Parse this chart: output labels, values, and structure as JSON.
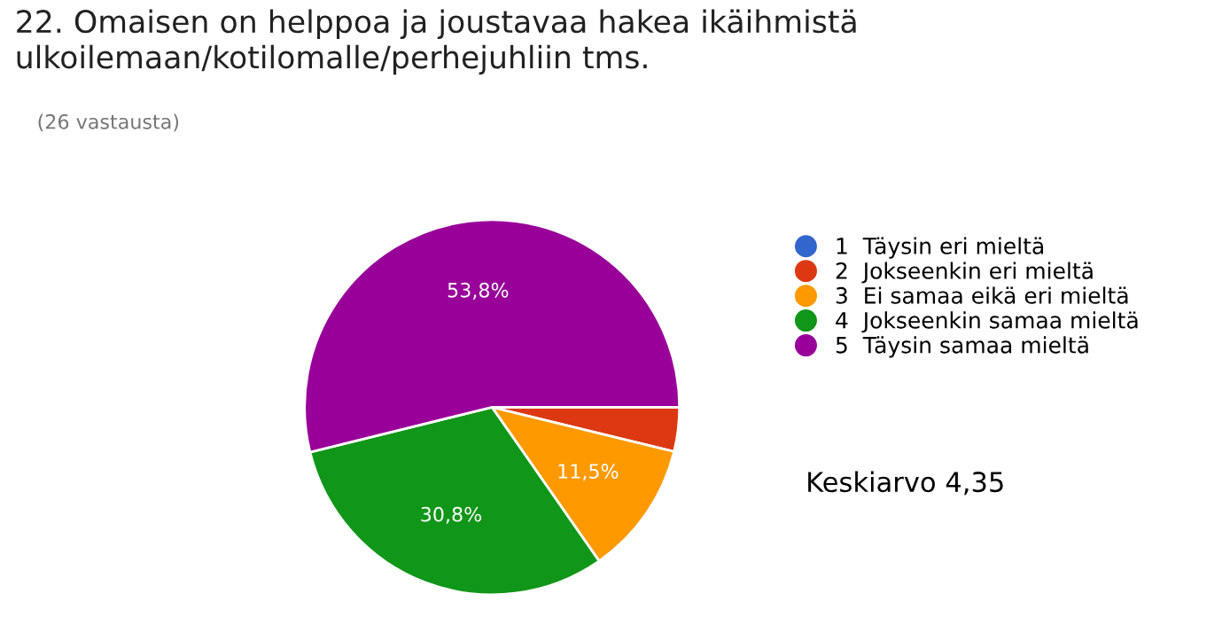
{
  "chart_data": {
    "type": "pie",
    "title": "22. Omaisen on helppoa ja joustavaa hakea ikäihmistä\nulkoilemaan/kotilomalle/perhejuhliin tms.",
    "categories": [
      "1  Täysin eri mieltä",
      "2  Jokseenkin eri mieltä",
      "3  Ei samaa eikä eri mieltä",
      "4  Jokseenkin samaa mieltä",
      "5  Täysin samaa mieltä"
    ],
    "values": [
      0,
      3.8,
      11.5,
      30.8,
      53.8
    ],
    "colors": [
      "#3366cc",
      "#dc3912",
      "#ff9900",
      "#109618",
      "#990099"
    ],
    "value_labels": [
      null,
      null,
      "11,5%",
      "30,8%",
      "53,8%"
    ],
    "legend": "right",
    "annotations": [
      "(26 vastausta)",
      "Keskiarvo 4,35"
    ]
  }
}
